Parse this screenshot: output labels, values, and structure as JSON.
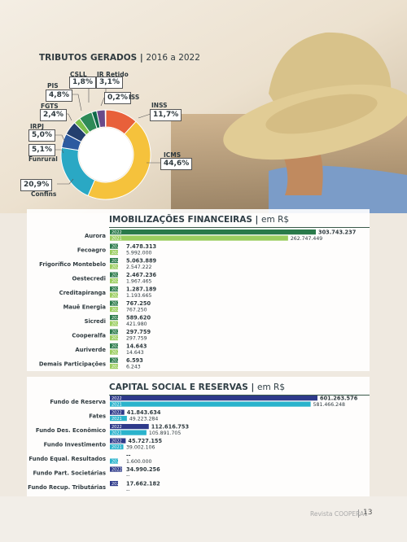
{
  "donut": {
    "title": "TRIBUTOS GERADOS",
    "subtitle": "2016 a 2022",
    "chart_data": {
      "type": "pie",
      "title": "TRIBUTOS GERADOS | 2016 a 2022",
      "slices": [
        {
          "label": "INSS",
          "value": 11.7,
          "display": "11,7%",
          "color": "#e8603a"
        },
        {
          "label": "ICMS",
          "value": 44.6,
          "display": "44,6%",
          "color": "#f5c23c"
        },
        {
          "label": "Confins",
          "value": 20.9,
          "display": "20,9%",
          "color": "#2aa8c4"
        },
        {
          "label": "Funrural",
          "value": 5.1,
          "display": "5,1%",
          "color": "#2c5aa0"
        },
        {
          "label": "IRPJ",
          "value": 5.0,
          "display": "5,0%",
          "color": "#24406e"
        },
        {
          "label": "FGTS",
          "value": 2.4,
          "display": "2,4%",
          "color": "#7bbf4a"
        },
        {
          "label": "PIS",
          "value": 4.8,
          "display": "4,8%",
          "color": "#2e8a57"
        },
        {
          "label": "CSLL",
          "value": 1.8,
          "display": "1,8%",
          "color": "#0f6a4a"
        },
        {
          "label": "IR Retido",
          "value": 3.1,
          "display": "3,1%",
          "color": "#6a4a8a"
        },
        {
          "label": "ISS",
          "value": 0.2,
          "display": "0,2%",
          "color": "#c7a0c0"
        }
      ]
    }
  },
  "imob": {
    "title": "IMOBILIZAÇÕES FINANCEIRAS",
    "subtitle": "em R$",
    "chart_data": {
      "type": "bar",
      "title": "IMOBILIZAÇÕES FINANCEIRAS | em R$",
      "categories": [
        "Aurora",
        "Fecoagro",
        "Frigorífico Montebelo",
        "Oestecredi",
        "Creditapiranga",
        "Mauê Energia",
        "Sicredi",
        "Cooperalfa",
        "Auriverde",
        "Demais Participações"
      ],
      "series": [
        {
          "name": "2022",
          "color": "#2a7a4a",
          "values": [
            303743237,
            7478313,
            5063889,
            2467236,
            1287189,
            767250,
            589620,
            297759,
            14643,
            6593
          ],
          "labels": [
            "303.743.237",
            "7.478.313",
            "5.063.889",
            "2.467.236",
            "1.287.189",
            "767.250",
            "589.620",
            "297.759",
            "14.643",
            "6.593"
          ]
        },
        {
          "name": "2021",
          "color": "#9acd5e",
          "values": [
            262747449,
            5992000,
            2547222,
            1967465,
            1193665,
            767250,
            421980,
            297759,
            14643,
            6243
          ],
          "labels": [
            "262.747.449",
            "5.992.000",
            "2.547.222",
            "1.967.465",
            "1.193.665",
            "767.250",
            "421.980",
            "297.759",
            "14.643",
            "6.243"
          ]
        }
      ]
    }
  },
  "capital": {
    "title": "CAPITAL SOCIAL E RESERVAS",
    "subtitle": "em R$",
    "chart_data": {
      "type": "bar",
      "title": "CAPITAL SOCIAL E RESERVAS | em R$",
      "categories": [
        "Fundo de Reserva",
        "Fates",
        "Fundo Des. Econômico",
        "Fundo Investimento",
        "Fundo Equal. Resultados",
        "Fundo Part. Societárias",
        "Fundo Recup. Tributárias"
      ],
      "series": [
        {
          "name": "2022",
          "color": "#2e3a8a",
          "values": [
            601263576,
            41843634,
            112616753,
            45727155,
            null,
            34990256,
            17662182
          ],
          "labels": [
            "601.263.576",
            "41.843.634",
            "112.616.753",
            "45.727.155",
            "--",
            "34.990.256",
            "17.662.182"
          ]
        },
        {
          "name": "2021",
          "color": "#2ab3cc",
          "values": [
            581466248,
            49223284,
            105891705,
            39002106,
            1600000,
            null,
            null
          ],
          "labels": [
            "581.466.248",
            "49.223.284",
            "105.891.705",
            "39.002.106",
            "1.600.000",
            "--",
            "--"
          ]
        }
      ]
    }
  },
  "footer": {
    "text": "Revista COOPERA1",
    "page": "13"
  }
}
